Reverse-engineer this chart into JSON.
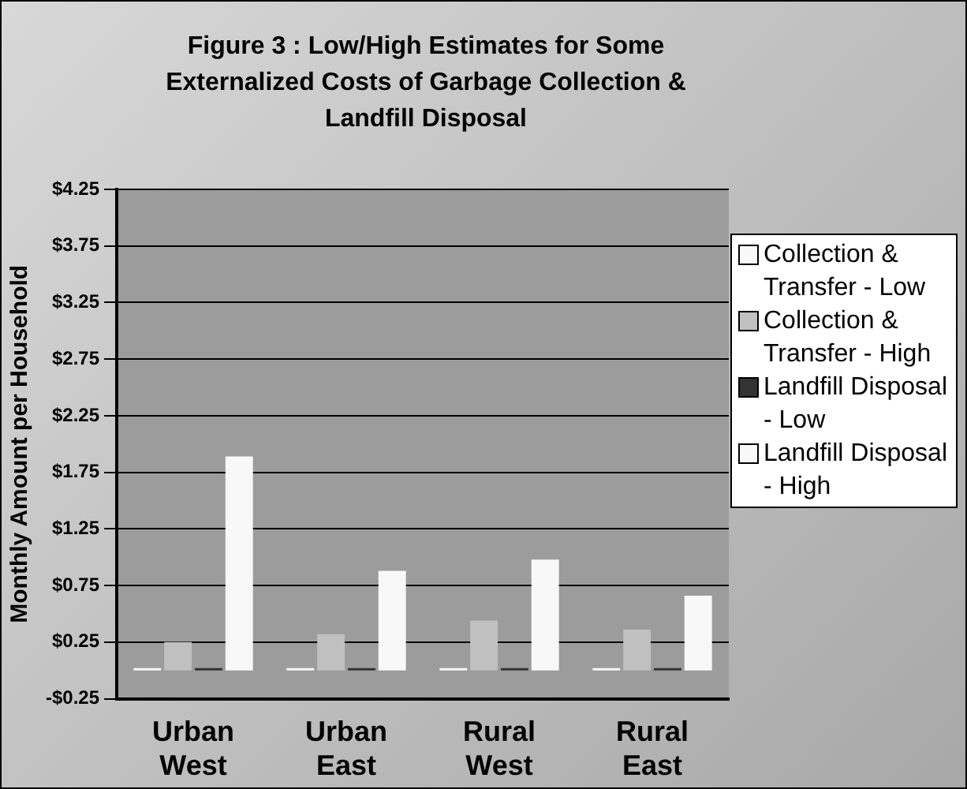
{
  "chart_data": {
    "type": "bar",
    "title": "Figure 3 : Low/High Estimates for Some Externalized Costs of Garbage Collection & Landfill Disposal",
    "ylabel": "Monthly Amount per Household",
    "categories": [
      "Urban West",
      "Urban East",
      "Rural West",
      "Rural East"
    ],
    "series": [
      {
        "name": "Collection & Transfer - Low",
        "color": "#f8f8f8",
        "values": [
          0.02,
          0.02,
          0.02,
          0.02
        ]
      },
      {
        "name": "Collection & Transfer - High",
        "color": "#c0c0c0",
        "values": [
          0.25,
          0.32,
          0.44,
          0.36
        ]
      },
      {
        "name": "Landfill Disposal - Low",
        "color": "#333333",
        "values": [
          0.02,
          0.02,
          0.02,
          0.02
        ]
      },
      {
        "name": "Landfill Disposal - High",
        "color": "#f8f8f8",
        "values": [
          1.89,
          0.88,
          0.98,
          0.66
        ]
      }
    ],
    "ylim": [
      -0.25,
      4.25
    ],
    "yticks": [
      {
        "value": -0.25,
        "label": "-$0.25"
      },
      {
        "value": 0.25,
        "label": "$0.25"
      },
      {
        "value": 0.75,
        "label": "$0.75"
      },
      {
        "value": 1.25,
        "label": "$1.25"
      },
      {
        "value": 1.75,
        "label": "$1.75"
      },
      {
        "value": 2.25,
        "label": "$2.25"
      },
      {
        "value": 2.75,
        "label": "$2.75"
      },
      {
        "value": 3.25,
        "label": "$3.25"
      },
      {
        "value": 3.75,
        "label": "$3.75"
      },
      {
        "value": 4.25,
        "label": "$4.25"
      }
    ],
    "grid": "y",
    "legend": "right"
  }
}
